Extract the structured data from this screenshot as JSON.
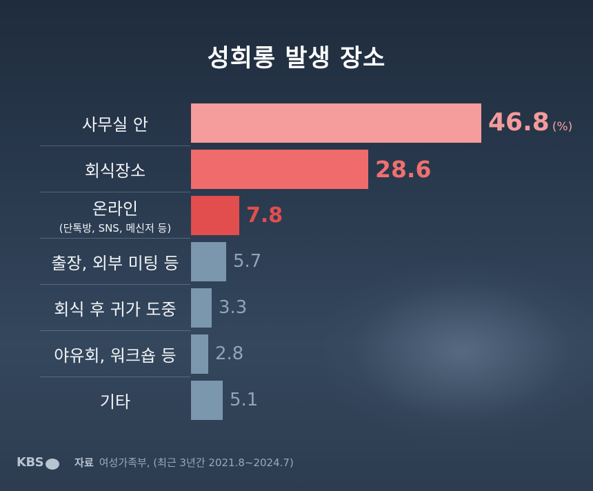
{
  "brand": "KBS",
  "footer": {
    "source_label": "자료",
    "source_text": "여성가족부, (최근 3년간 2021.8~2024.7)"
  },
  "chart_data": {
    "type": "bar",
    "orientation": "horizontal",
    "title": "성희롱 발생 장소",
    "unit": "(%)",
    "xlim": [
      0,
      46.8
    ],
    "categories": [
      {
        "label": "사무실 안",
        "sub": ""
      },
      {
        "label": "회식장소",
        "sub": ""
      },
      {
        "label": "온라인",
        "sub": "(단톡방, SNS, 메신저 등)"
      },
      {
        "label": "출장, 외부 미팅 등",
        "sub": ""
      },
      {
        "label": "회식 후 귀가 도중",
        "sub": ""
      },
      {
        "label": "야유회, 워크숍 등",
        "sub": ""
      },
      {
        "label": "기타",
        "sub": ""
      }
    ],
    "values": [
      "46.8",
      "28.6",
      "7.8",
      "5.7",
      "3.3",
      "2.8",
      "5.1"
    ],
    "colors": {
      "bars": [
        "#f59c9c",
        "#f06b6b",
        "#e24e4e",
        "#7b97ad",
        "#7b97ad",
        "#7b97ad",
        "#7b97ad"
      ],
      "labels": [
        "#f49b9b",
        "#f07070",
        "#e24e4e",
        "#8fa5b8",
        "#8fa5b8",
        "#8fa5b8",
        "#8fa5b8"
      ]
    }
  }
}
